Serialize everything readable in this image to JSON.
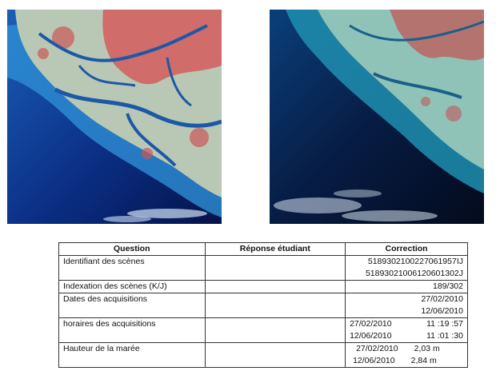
{
  "images": {
    "left": {
      "icon": "satellite-image-scene-1"
    },
    "right": {
      "icon": "satellite-image-scene-2"
    }
  },
  "table": {
    "headers": [
      "Question",
      "Réponse étudiant",
      "Correction"
    ],
    "rows": [
      {
        "question": "Identifiant des scènes",
        "corrections": [
          "5189302100227061957IJ",
          "5189302100612060130​2J"
        ]
      },
      {
        "question": "Indexation des scènes (K/J)",
        "corrections": [
          "189/302"
        ]
      },
      {
        "question": "Dates des acquisitions",
        "corrections": [
          "27/02/2010",
          "12/06/2010"
        ]
      },
      {
        "question": "horaires des acquisitions",
        "pairs": [
          [
            "27/02/2010",
            "11 :19 :57"
          ],
          [
            "12/06/2010",
            "11 :01 :30"
          ]
        ]
      },
      {
        "question": "Hauteur de la marée",
        "pairs": [
          [
            "27/02/2010",
            "2,03 m"
          ],
          [
            "12/06/2010",
            "2,84 m"
          ]
        ]
      }
    ]
  }
}
